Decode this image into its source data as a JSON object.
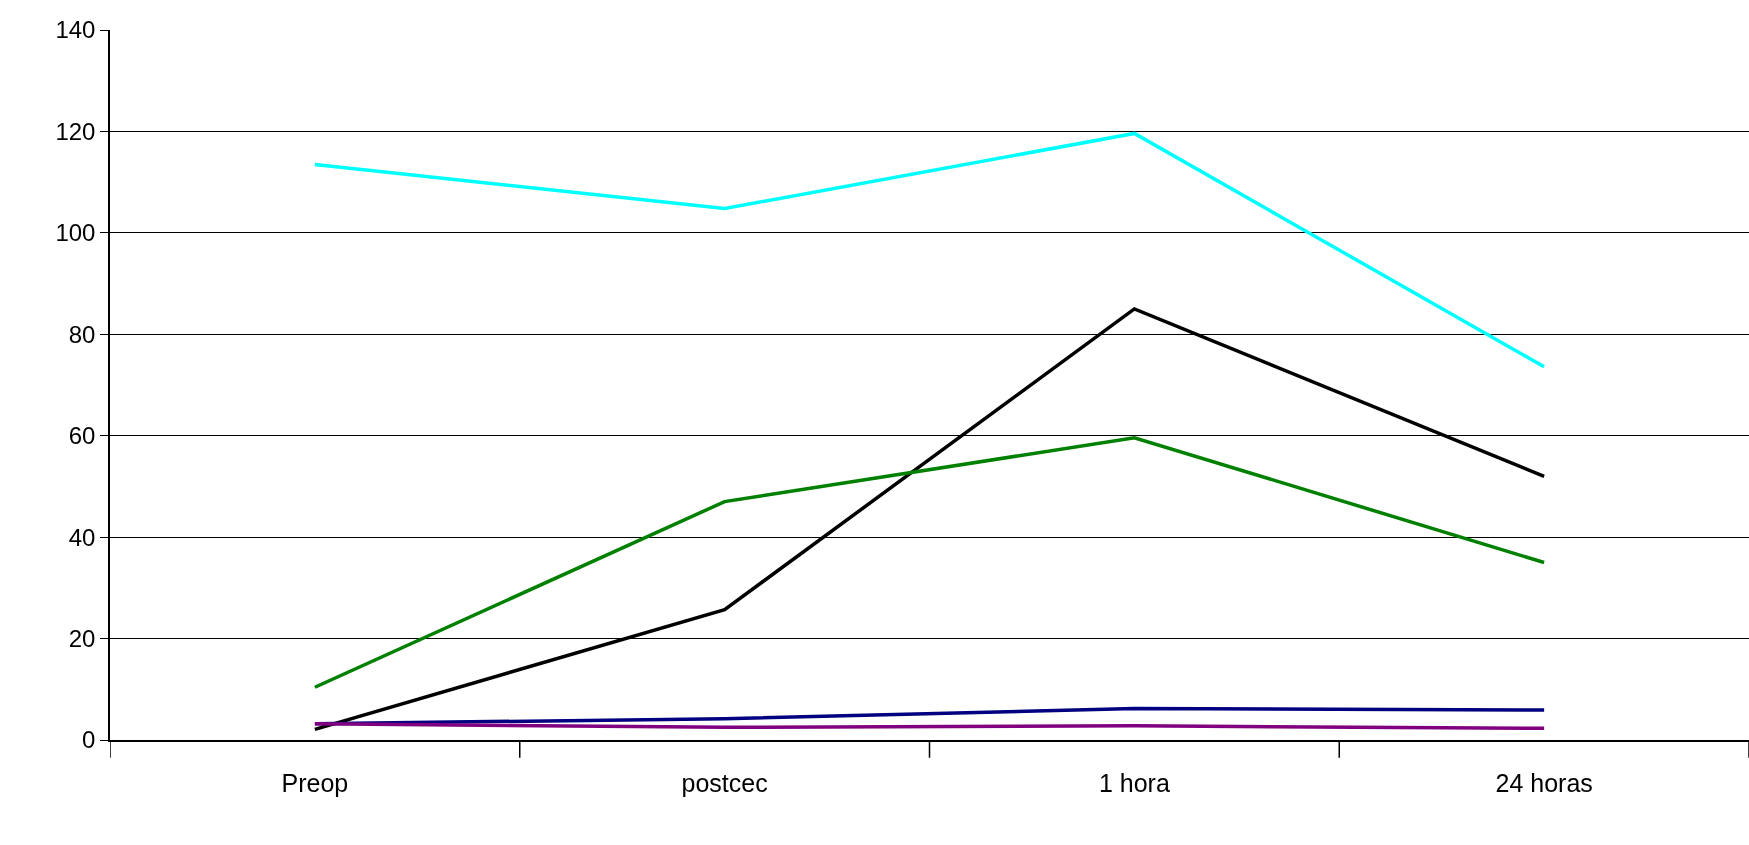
{
  "chart_data": {
    "type": "line",
    "categories": [
      "Preop",
      "postcec",
      "1 hora",
      "24 horas"
    ],
    "series": [
      {
        "color": "#00ffff",
        "values": [
          113.5,
          104.8,
          119.6,
          73.6
        ]
      },
      {
        "color": "#000000",
        "values": [
          2.1,
          25.7,
          85,
          52
        ]
      },
      {
        "color": "#008000",
        "values": [
          10.4,
          47,
          59.6,
          35
        ]
      },
      {
        "color": "#000080",
        "values": [
          3.2,
          4.2,
          6.2,
          5.9
        ]
      },
      {
        "color": "#800080",
        "values": [
          3.2,
          2.5,
          2.8,
          2.3
        ]
      }
    ],
    "ylim": [
      0,
      140
    ],
    "yticks": [
      0,
      20,
      40,
      60,
      80,
      100,
      120,
      140
    ],
    "grid": "y",
    "legend": false,
    "marker": "none",
    "line_style": "solid"
  }
}
